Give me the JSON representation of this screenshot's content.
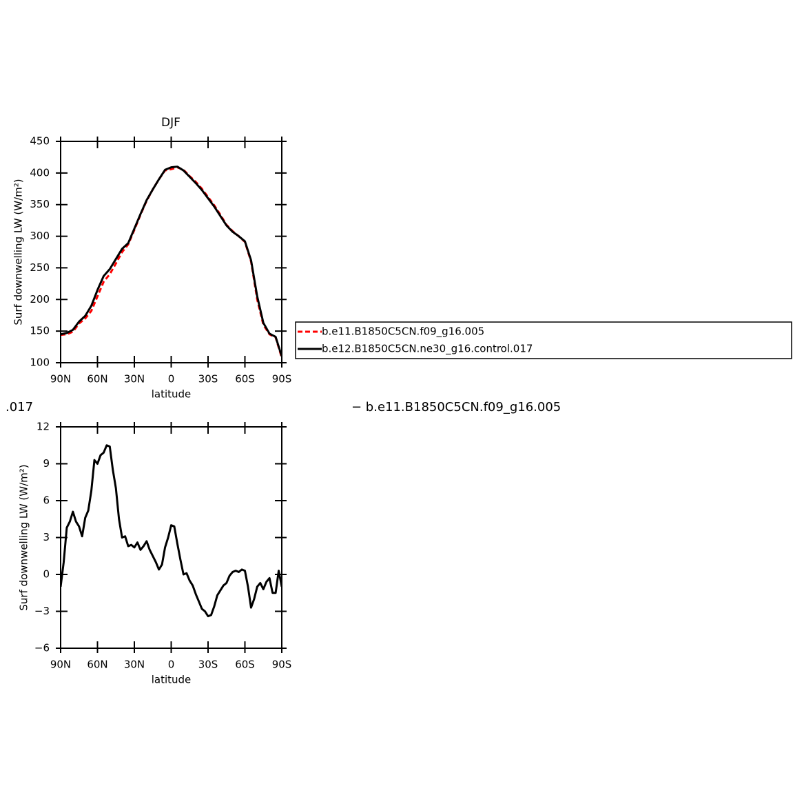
{
  "chart_data": [
    {
      "type": "line",
      "title": "DJF",
      "xlabel": "latitude",
      "ylabel": "Surf downwelling LW (W/m²)",
      "x": [
        90,
        85,
        80,
        75,
        70,
        65,
        60,
        55,
        50,
        45,
        40,
        35,
        30,
        25,
        20,
        15,
        10,
        5,
        0,
        -5,
        -10,
        -15,
        -20,
        -25,
        -30,
        -35,
        -40,
        -45,
        -50,
        -55,
        -60,
        -65,
        -70,
        -75,
        -80,
        -85,
        -90
      ],
      "xlim": [
        90,
        -90
      ],
      "xticks": [
        {
          "value": 90,
          "label": "90N"
        },
        {
          "value": 60,
          "label": "60N"
        },
        {
          "value": 30,
          "label": "30N"
        },
        0,
        {
          "value": -30,
          "label": "30S"
        },
        {
          "value": -60,
          "label": "60S"
        },
        {
          "value": -90,
          "label": "90S"
        }
      ],
      "ylim": [
        100,
        450
      ],
      "yticks": [
        100,
        150,
        200,
        250,
        300,
        350,
        400,
        450
      ],
      "legend": "right",
      "series": [
        {
          "name": "b.e11.B1850C5CN.f09_g16.005",
          "color": "#ff0000",
          "dashed": true,
          "values": [
            144,
            145,
            149,
            162,
            170,
            182,
            205,
            228,
            240,
            257,
            275,
            287,
            310,
            334,
            356,
            374,
            390,
            404,
            406,
            409,
            405,
            395,
            386,
            375,
            362,
            349,
            334,
            318,
            308,
            300,
            291,
            260,
            200,
            160,
            145,
            140,
            108
          ]
        },
        {
          "name": "b.e12.B1850C5CN.ne30_g16.control.017",
          "color": "#000000",
          "dashed": false,
          "values": [
            145,
            147,
            152,
            165,
            174,
            190,
            215,
            237,
            248,
            264,
            280,
            289,
            312,
            335,
            357,
            374,
            390,
            405,
            409,
            410,
            404,
            394,
            384,
            373,
            360,
            347,
            332,
            317,
            307,
            300,
            292,
            262,
            205,
            163,
            146,
            141,
            110
          ]
        }
      ]
    },
    {
      "type": "line",
      "title_fragments": [
        ".017",
        "− b.e11.B1850C5CN.f09_g16.005"
      ],
      "xlabel": "latitude",
      "ylabel": "Surf downwelling LW (W/m²)",
      "x": [
        90,
        87.5,
        85,
        82.5,
        80,
        77.5,
        75,
        72.5,
        70,
        67.5,
        65,
        62.5,
        60,
        57.5,
        55,
        52.5,
        50,
        47.5,
        45,
        42.5,
        40,
        37.5,
        35,
        32.5,
        30,
        27.5,
        25,
        22.5,
        20,
        17.5,
        15,
        12.5,
        10,
        7.5,
        5,
        2.5,
        0,
        -2.5,
        -5,
        -7.5,
        -10,
        -12.5,
        -15,
        -17.5,
        -20,
        -22.5,
        -25,
        -27.5,
        -30,
        -32.5,
        -35,
        -37.5,
        -40,
        -42.5,
        -45,
        -47.5,
        -50,
        -52.5,
        -55,
        -57.5,
        -60,
        -62.5,
        -65,
        -67.5,
        -70,
        -72.5,
        -75,
        -77.5,
        -80,
        -82.5,
        -85,
        -87.5,
        -90
      ],
      "xlim": [
        90,
        -90
      ],
      "xticks": [
        {
          "value": 90,
          "label": "90N"
        },
        {
          "value": 60,
          "label": "60N"
        },
        {
          "value": 30,
          "label": "30N"
        },
        0,
        {
          "value": -30,
          "label": "30S"
        },
        {
          "value": -60,
          "label": "60S"
        },
        {
          "value": -90,
          "label": "90S"
        }
      ],
      "ylim": [
        -6,
        12
      ],
      "yticks": [
        {
          "value": -6,
          "label": "−6"
        },
        {
          "value": -3,
          "label": "−3"
        },
        0,
        3,
        6,
        9,
        12
      ],
      "series": [
        {
          "color": "#000000",
          "dashed": false,
          "values": [
            -1.0,
            1.0,
            3.8,
            4.3,
            5.1,
            4.3,
            3.9,
            3.1,
            4.6,
            5.2,
            6.8,
            9.3,
            9.0,
            9.7,
            9.9,
            10.5,
            10.4,
            8.5,
            7.0,
            4.5,
            3.0,
            3.1,
            2.3,
            2.4,
            2.2,
            2.6,
            2.0,
            2.3,
            2.7,
            2.0,
            1.5,
            1.0,
            0.4,
            0.8,
            2.2,
            3.0,
            4.0,
            3.9,
            2.5,
            1.2,
            0.0,
            0.1,
            -0.5,
            -0.9,
            -1.6,
            -2.2,
            -2.8,
            -3.0,
            -3.4,
            -3.3,
            -2.6,
            -1.7,
            -1.3,
            -0.9,
            -0.7,
            -0.1,
            0.2,
            0.3,
            0.2,
            0.4,
            0.3,
            -1.0,
            -2.7,
            -2.0,
            -1.0,
            -0.7,
            -1.2,
            -0.6,
            -0.3,
            -1.5,
            -1.5,
            0.3,
            -1.0
          ]
        }
      ]
    }
  ]
}
